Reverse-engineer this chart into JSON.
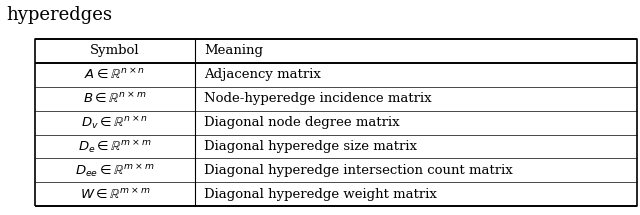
{
  "title": "hyperedges",
  "header": [
    "Symbol",
    "Meaning"
  ],
  "rows": [
    [
      "$A \\in \\mathbb{R}^{n \\times n}$",
      "Adjacency matrix"
    ],
    [
      "$B \\in \\mathbb{R}^{n \\times m}$",
      "Node-hyperedge incidence matrix"
    ],
    [
      "$D_v \\in \\mathbb{R}^{n \\times n}$",
      "Diagonal node degree matrix"
    ],
    [
      "$D_e \\in \\mathbb{R}^{m \\times m}$",
      "Diagonal hyperedge size matrix"
    ],
    [
      "$D_{ee} \\in \\mathbb{R}^{m \\times m}$",
      "Diagonal hyperedge intersection count matrix"
    ],
    [
      "$W \\in \\mathbb{R}^{m \\times m}$",
      "Diagonal hyperedge weight matrix"
    ]
  ],
  "col_split": 0.265,
  "background_color": "#ffffff",
  "header_fontsize": 9.5,
  "row_fontsize": 9.5,
  "title_fontsize": 13
}
